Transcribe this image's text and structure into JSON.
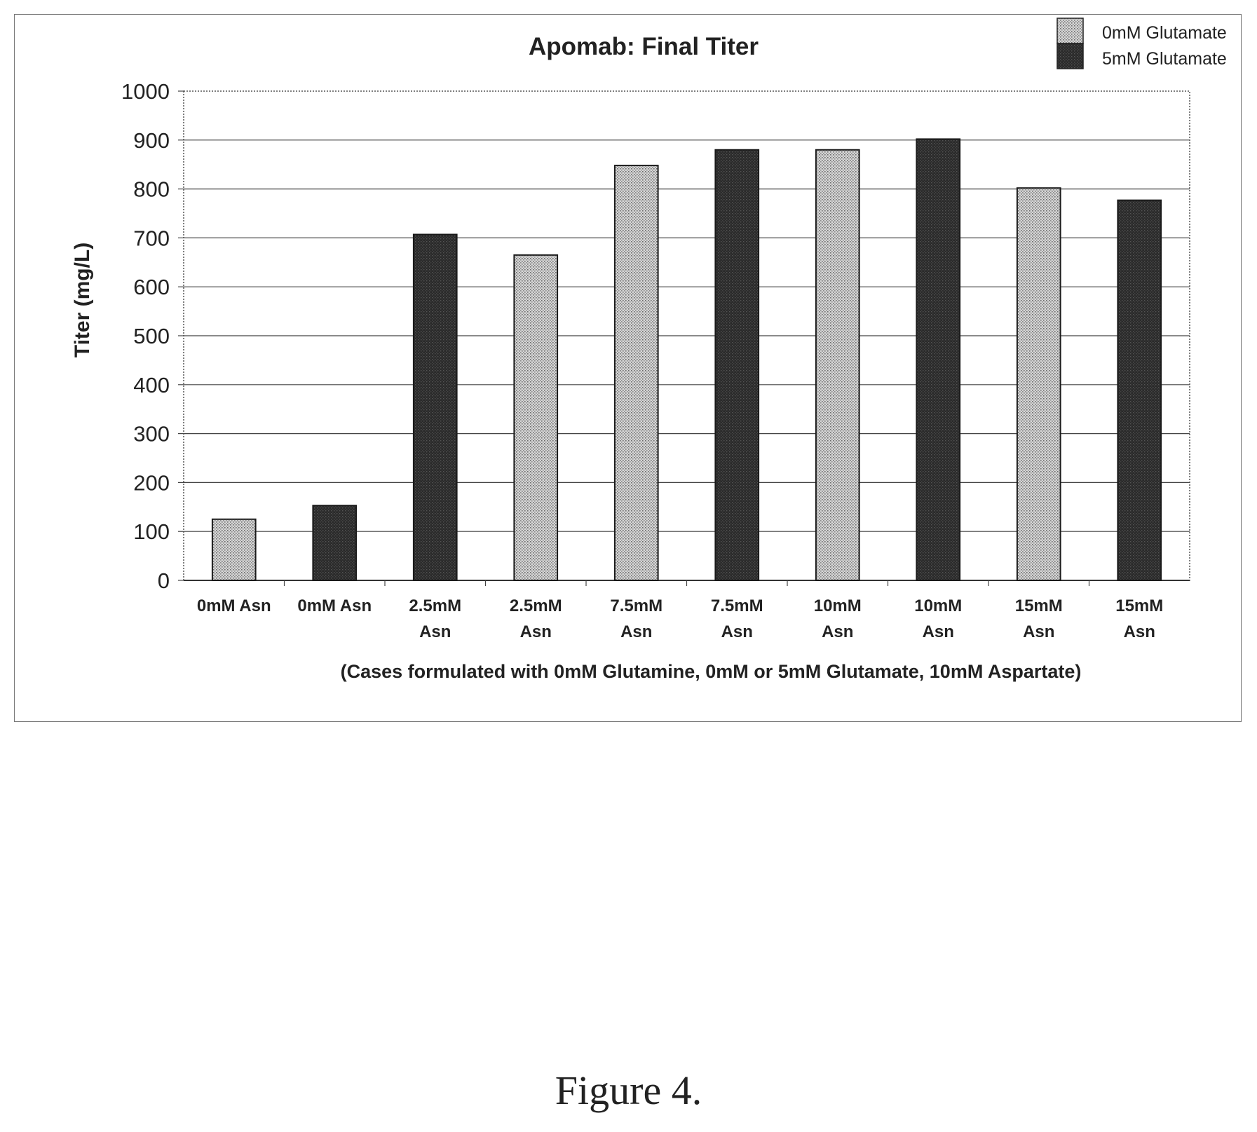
{
  "chart_data": {
    "type": "bar",
    "title": "Apomab: Final Titer",
    "xlabel": "(Cases formulated with 0mM Glutamine, 0mM or 5mM Glutamate, 10mM Aspartate)",
    "ylabel": "Titer (mg/L)",
    "ylim": [
      0,
      1000
    ],
    "yticks": [
      0,
      100,
      200,
      300,
      400,
      500,
      600,
      700,
      800,
      900,
      1000
    ],
    "grid": true,
    "legend_position": "top-right",
    "categories": [
      [
        "0mM Asn"
      ],
      [
        "0mM Asn"
      ],
      [
        "2.5mM",
        "Asn"
      ],
      [
        "2.5mM",
        "Asn"
      ],
      [
        "7.5mM",
        "Asn"
      ],
      [
        "7.5mM",
        "Asn"
      ],
      [
        "10mM",
        "Asn"
      ],
      [
        "10mM",
        "Asn"
      ],
      [
        "15mM",
        "Asn"
      ],
      [
        "15mM",
        "Asn"
      ]
    ],
    "bars": [
      {
        "value": 125,
        "series": 0
      },
      {
        "value": 153,
        "series": 1
      },
      {
        "value": 707,
        "series": 1
      },
      {
        "value": 665,
        "series": 0
      },
      {
        "value": 848,
        "series": 0
      },
      {
        "value": 880,
        "series": 1
      },
      {
        "value": 880,
        "series": 0
      },
      {
        "value": 902,
        "series": 1
      },
      {
        "value": 802,
        "series": 0
      },
      {
        "value": 777,
        "series": 1
      }
    ],
    "series": [
      {
        "name": "0mM Glutamate",
        "fill": "#c8c8c8",
        "pattern": "light-dotted"
      },
      {
        "name": "5mM Glutamate",
        "fill": "#2e2e2e",
        "pattern": "dark-dotted"
      }
    ]
  },
  "caption": "Figure 4."
}
